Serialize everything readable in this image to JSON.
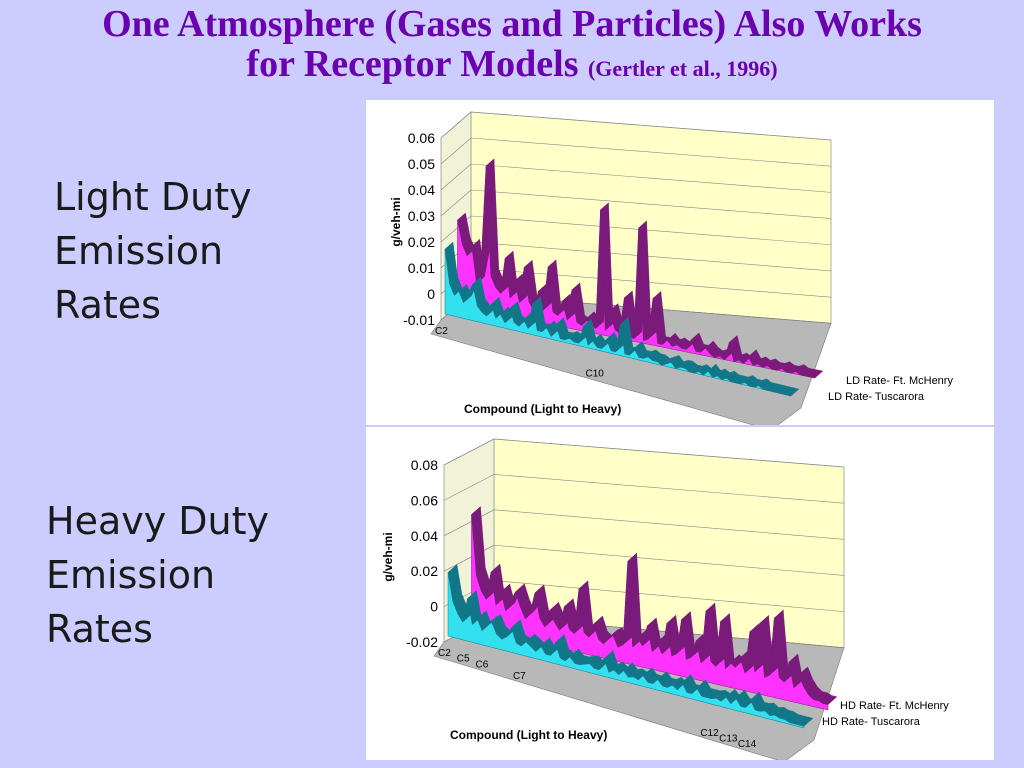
{
  "slide": {
    "title_main_line1": "One Atmosphere (Gases and Particles) Also Works",
    "title_main_line2": "for Receptor Models",
    "title_citation": "(Gertler et al., 1996)",
    "light_label": [
      "Light Duty",
      "Emission",
      "Rates"
    ],
    "heavy_label": [
      "Heavy Duty",
      "Emission",
      "Rates"
    ]
  },
  "colors": {
    "background": "#ccccff",
    "title": "#6a00b0",
    "wall": "#ffffc8",
    "floor": "#b8b8b8",
    "series_ftmchenry": "#ff33ff",
    "series_ftmchenry_top": "#7a1a7a",
    "series_tuscarora": "#33e0f0",
    "series_tuscarora_top": "#117788"
  },
  "chart_data": [
    {
      "type": "bar",
      "subtype": "3d-series",
      "ylabel": "g/veh-mi",
      "xlabel": "Compound (Light to Heavy)",
      "ylim": [
        -0.01,
        0.06
      ],
      "yticks": [
        "0.06",
        "0.05",
        "0.04",
        "0.03",
        "0.02",
        "0.01",
        "0",
        "-0.01"
      ],
      "category_ticks": [
        {
          "label": "C2",
          "index": 0
        },
        {
          "label": "C10",
          "index": 34
        }
      ],
      "grid": true,
      "legend_position": "right",
      "series": [
        {
          "name": "LD Rate- Ft. McHenry",
          "values": [
            0.033,
            0.024,
            0.02,
            0.024,
            0.01,
            0.02,
            0.056,
            0.014,
            0.01,
            0.008,
            0.022,
            0.007,
            0.014,
            0.006,
            0.02,
            0.007,
            0.004,
            0.012,
            0.005,
            0.022,
            0.005,
            0.004,
            0.01,
            0.003,
            0.015,
            0.003,
            0.002,
            0.005,
            0.003,
            0.002,
            0.048,
            0.002,
            0.01,
            0.003,
            0.002,
            0.016,
            0.002,
            0.001,
            0.044,
            0.001,
            0.002,
            0.018,
            0.001,
            0.001,
            0.003,
            0.001,
            0.002,
            0.001,
            0.001,
            0.005,
            0.001,
            0.001,
            0.003,
            0.001,
            0.0,
            0.001,
            0.0,
            0.007,
            0.0,
            0.001,
            0.0,
            0.003,
            0.0,
            0.001,
            0.0,
            0.001,
            0.0,
            0.0,
            0.001,
            0.0,
            0.0,
            0.001,
            0.0,
            0.0,
            0.0,
            0.0
          ]
        },
        {
          "name": "LD Rate- Tuscarora",
          "values": [
            0.025,
            0.012,
            0.008,
            0.01,
            0.006,
            0.01,
            0.014,
            0.006,
            0.004,
            0.003,
            0.008,
            0.003,
            0.005,
            0.002,
            0.008,
            0.003,
            0.002,
            0.005,
            0.002,
            0.012,
            0.002,
            0.002,
            0.004,
            0.001,
            0.006,
            0.001,
            0.001,
            0.002,
            0.001,
            0.001,
            0.008,
            0.001,
            0.003,
            0.001,
            0.001,
            0.005,
            0.001,
            0.001,
            0.012,
            0.001,
            0.001,
            0.004,
            0.001,
            0.001,
            0.002,
            0.001,
            0.001,
            0.0,
            0.001,
            0.002,
            0.0,
            0.001,
            0.001,
            0.0,
            0.0,
            0.001,
            0.0,
            0.002,
            0.0,
            0.001,
            0.0,
            0.001,
            0.0,
            0.0,
            0.0,
            0.001,
            0.0,
            0.0,
            0.001,
            0.0,
            0.0,
            0.0,
            0.0,
            0.0,
            0.0,
            0.0
          ]
        }
      ]
    },
    {
      "type": "bar",
      "subtype": "3d-series",
      "ylabel": "g/veh-mi",
      "xlabel": "Compound (Light to Heavy)",
      "ylim": [
        -0.02,
        0.08
      ],
      "yticks": [
        "0.08",
        "0.06",
        "0.04",
        "0.02",
        "0",
        "-0.02"
      ],
      "category_ticks": [
        {
          "label": "C2",
          "index": 0
        },
        {
          "label": "C5",
          "index": 4
        },
        {
          "label": "C6",
          "index": 8
        },
        {
          "label": "C7",
          "index": 16
        },
        {
          "label": "C12",
          "index": 56
        },
        {
          "label": "C13",
          "index": 60
        },
        {
          "label": "C14",
          "index": 64
        }
      ],
      "grid": true,
      "legend_position": "right",
      "series": [
        {
          "name": "HD Rate- Ft. McHenry",
          "values": [
            0.064,
            0.03,
            0.022,
            0.018,
            0.034,
            0.016,
            0.024,
            0.014,
            0.02,
            0.026,
            0.018,
            0.012,
            0.016,
            0.028,
            0.014,
            0.01,
            0.02,
            0.014,
            0.01,
            0.024,
            0.012,
            0.01,
            0.036,
            0.012,
            0.01,
            0.018,
            0.01,
            0.008,
            0.012,
            0.014,
            0.008,
            0.01,
            0.058,
            0.01,
            0.016,
            0.012,
            0.024,
            0.01,
            0.016,
            0.01,
            0.028,
            0.01,
            0.012,
            0.032,
            0.01,
            0.012,
            0.022,
            0.01,
            0.04,
            0.012,
            0.01,
            0.036,
            0.01,
            0.014,
            0.012,
            0.018,
            0.01,
            0.034,
            0.012,
            0.04,
            0.01,
            0.012,
            0.045,
            0.012,
            0.01,
            0.022,
            0.008,
            0.016,
            0.01,
            0.006,
            0.004,
            0.004,
            0.003,
            0.003
          ]
        },
        {
          "name": "HD Rate- Tuscarora",
          "values": [
            0.036,
            0.02,
            0.014,
            0.01,
            0.024,
            0.01,
            0.014,
            0.008,
            0.012,
            0.014,
            0.008,
            0.006,
            0.008,
            0.014,
            0.006,
            0.005,
            0.008,
            0.006,
            0.004,
            0.008,
            0.004,
            0.004,
            0.012,
            0.004,
            0.003,
            0.006,
            0.003,
            0.003,
            0.004,
            0.005,
            0.003,
            0.003,
            0.01,
            0.003,
            0.005,
            0.003,
            0.006,
            0.003,
            0.004,
            0.003,
            0.006,
            0.003,
            0.003,
            0.006,
            0.003,
            0.003,
            0.005,
            0.003,
            0.008,
            0.003,
            0.003,
            0.007,
            0.003,
            0.003,
            0.003,
            0.004,
            0.003,
            0.006,
            0.003,
            0.007,
            0.003,
            0.003,
            0.008,
            0.003,
            0.003,
            0.004,
            0.002,
            0.003,
            0.002,
            0.002,
            0.001,
            0.001,
            0.001,
            0.001
          ]
        }
      ]
    }
  ]
}
